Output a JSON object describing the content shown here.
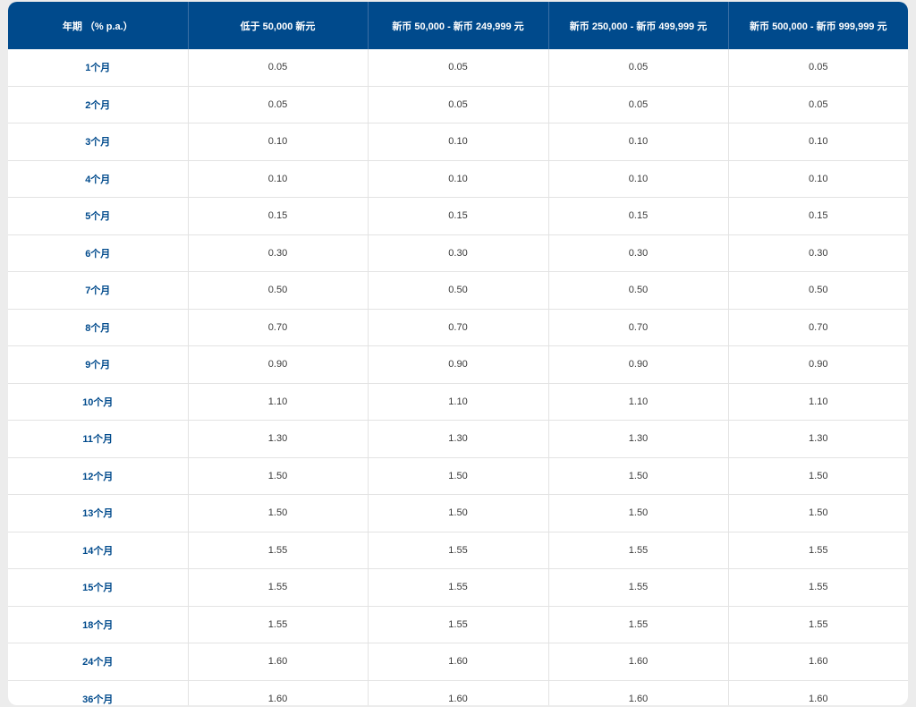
{
  "table": {
    "headers": [
      "年期 （% p.a.）",
      "低于 50,000 新元",
      "新币 50,000 - 新币 249,999 元",
      "新币 250,000 - 新币 499,999 元",
      "新币 500,000 - 新币 999,999 元"
    ],
    "rows": [
      [
        "1个月",
        "0.05",
        "0.05",
        "0.05",
        "0.05"
      ],
      [
        "2个月",
        "0.05",
        "0.05",
        "0.05",
        "0.05"
      ],
      [
        "3个月",
        "0.10",
        "0.10",
        "0.10",
        "0.10"
      ],
      [
        "4个月",
        "0.10",
        "0.10",
        "0.10",
        "0.10"
      ],
      [
        "5个月",
        "0.15",
        "0.15",
        "0.15",
        "0.15"
      ],
      [
        "6个月",
        "0.30",
        "0.30",
        "0.30",
        "0.30"
      ],
      [
        "7个月",
        "0.50",
        "0.50",
        "0.50",
        "0.50"
      ],
      [
        "8个月",
        "0.70",
        "0.70",
        "0.70",
        "0.70"
      ],
      [
        "9个月",
        "0.90",
        "0.90",
        "0.90",
        "0.90"
      ],
      [
        "10个月",
        "1.10",
        "1.10",
        "1.10",
        "1.10"
      ],
      [
        "11个月",
        "1.30",
        "1.30",
        "1.30",
        "1.30"
      ],
      [
        "12个月",
        "1.50",
        "1.50",
        "1.50",
        "1.50"
      ],
      [
        "13个月",
        "1.50",
        "1.50",
        "1.50",
        "1.50"
      ],
      [
        "14个月",
        "1.55",
        "1.55",
        "1.55",
        "1.55"
      ],
      [
        "15个月",
        "1.55",
        "1.55",
        "1.55",
        "1.55"
      ],
      [
        "18个月",
        "1.55",
        "1.55",
        "1.55",
        "1.55"
      ],
      [
        "24个月",
        "1.60",
        "1.60",
        "1.60",
        "1.60"
      ],
      [
        "36个月",
        "1.60",
        "1.60",
        "1.60",
        "1.60"
      ]
    ]
  },
  "colors": {
    "header_bg": "#004a8c",
    "header_text": "#ffffff",
    "term_text": "#004a8c",
    "cell_text": "#3a3a3a",
    "page_bg": "#ececec"
  }
}
